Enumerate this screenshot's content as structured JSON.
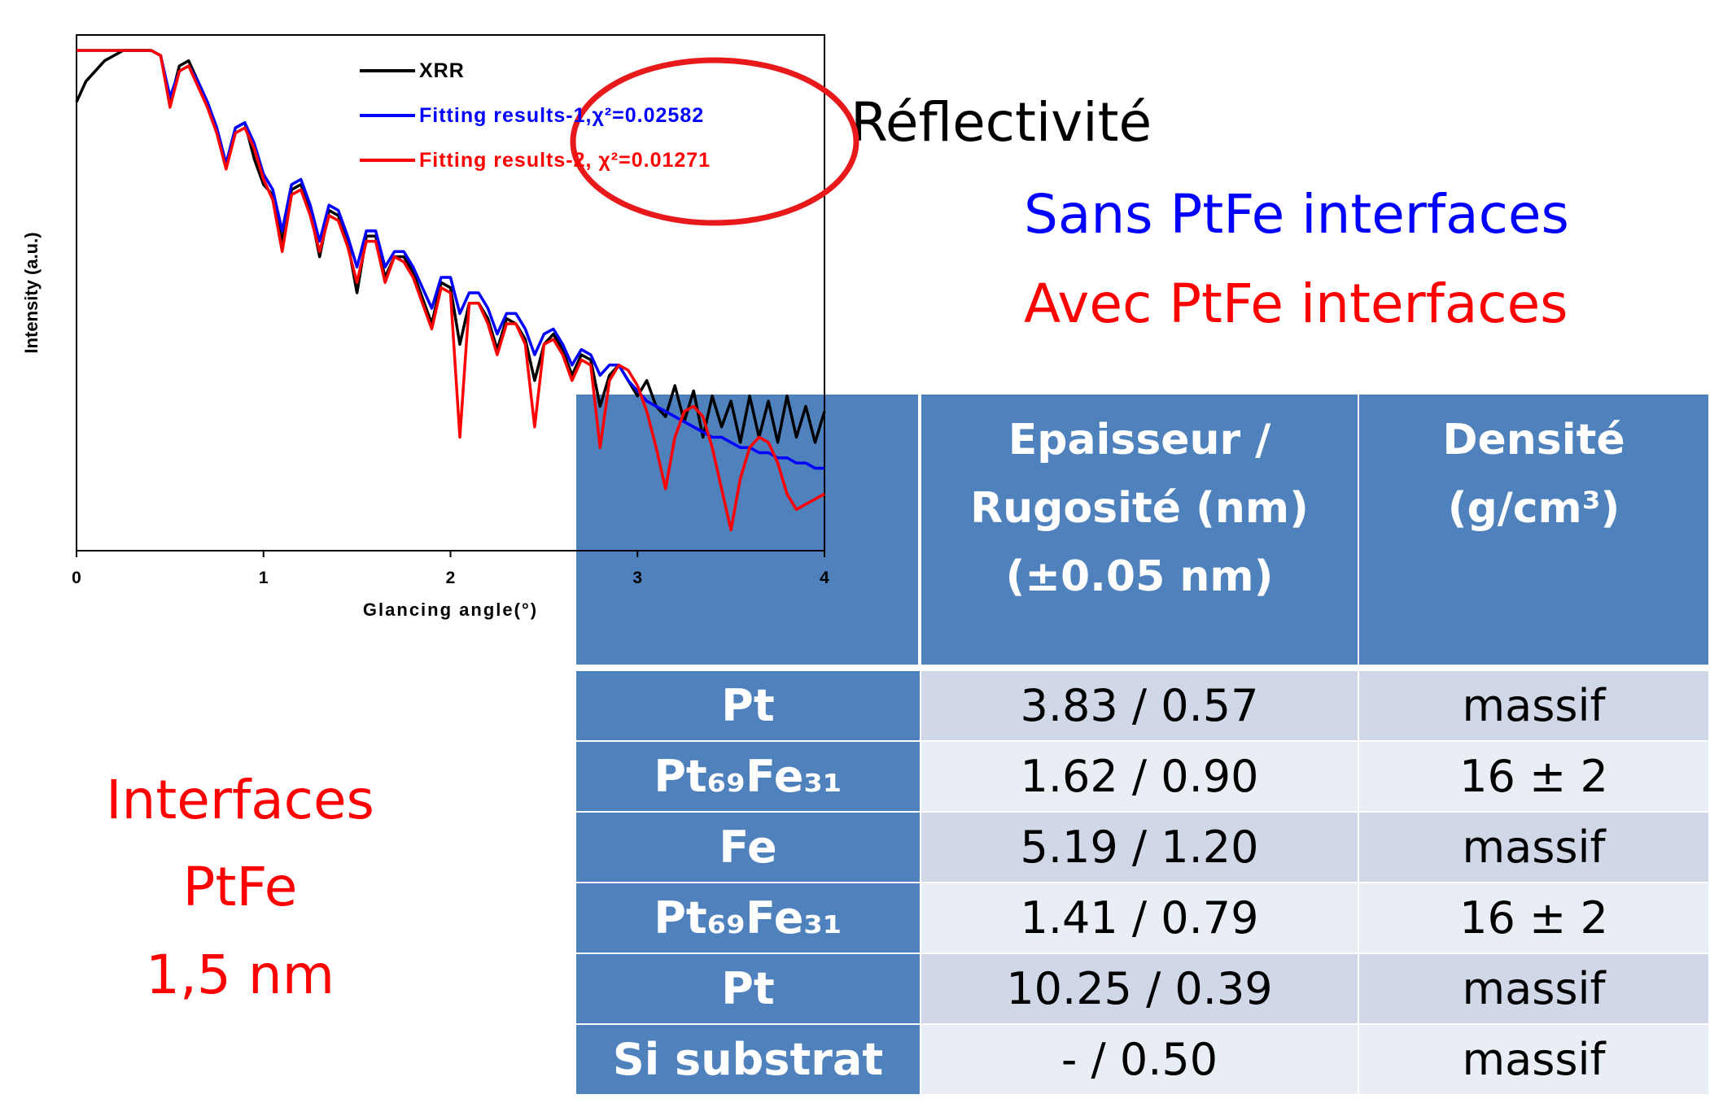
{
  "chart_data": {
    "type": "line",
    "ylabel": "Intensity (a.u.)",
    "xlabel": "Glancing angle(°)",
    "xlim": [
      0,
      4
    ],
    "xticks": [
      0,
      1,
      2,
      3,
      4
    ],
    "ylim": [
      0,
      100
    ],
    "x": [
      0,
      0.05,
      0.1,
      0.15,
      0.2,
      0.25,
      0.3,
      0.35,
      0.4,
      0.45,
      0.5,
      0.55,
      0.6,
      0.65,
      0.7,
      0.75,
      0.8,
      0.85,
      0.9,
      0.95,
      1,
      1.05,
      1.1,
      1.15,
      1.2,
      1.25,
      1.3,
      1.35,
      1.4,
      1.45,
      1.5,
      1.55,
      1.6,
      1.65,
      1.7,
      1.75,
      1.8,
      1.85,
      1.9,
      1.95,
      2,
      2.05,
      2.1,
      2.15,
      2.2,
      2.25,
      2.3,
      2.35,
      2.4,
      2.45,
      2.5,
      2.55,
      2.6,
      2.65,
      2.7,
      2.75,
      2.8,
      2.85,
      2.9,
      2.95,
      3,
      3.05,
      3.1,
      3.15,
      3.2,
      3.25,
      3.3,
      3.35,
      3.4,
      3.45,
      3.5,
      3.55,
      3.6,
      3.65,
      3.7,
      3.75,
      3.8,
      3.85,
      3.9,
      3.95,
      4
    ],
    "series": [
      {
        "name": "XRR",
        "color": "#000000",
        "values": [
          87,
          91,
          93,
          95,
          96,
          97,
          97,
          97,
          97,
          96,
          87,
          94,
          95,
          91,
          87,
          82,
          75,
          82,
          83,
          76,
          71,
          69,
          60,
          70,
          71,
          66,
          57,
          66,
          65,
          60,
          50,
          61,
          61,
          53,
          57,
          57,
          54,
          49,
          44,
          52,
          51,
          40,
          48,
          48,
          45,
          39,
          45,
          44,
          41,
          33,
          40,
          42,
          39,
          34,
          38,
          37,
          28,
          34,
          36,
          33,
          30,
          33,
          28,
          26,
          32,
          25,
          31,
          22,
          30,
          24,
          29,
          21,
          30,
          22,
          29,
          21,
          30,
          22,
          28,
          21,
          27
        ]
      },
      {
        "name": "Fitting results-1,χ²=0.02582",
        "color": "#0000ff",
        "values": [
          97,
          97,
          97,
          97,
          97,
          97,
          97,
          97,
          97,
          96,
          88,
          93,
          94,
          91,
          87,
          82,
          75,
          82,
          83,
          79,
          73,
          70,
          62,
          71,
          72,
          67,
          60,
          67,
          66,
          61,
          55,
          62,
          62,
          55,
          58,
          58,
          55,
          51,
          47,
          53,
          53,
          46,
          50,
          50,
          47,
          42,
          46,
          46,
          43,
          38,
          42,
          43,
          40,
          36,
          39,
          38,
          34,
          36,
          36,
          33,
          31,
          29,
          28,
          27,
          26,
          25,
          24,
          23,
          22,
          22,
          21,
          20,
          20,
          19,
          19,
          18,
          18,
          17,
          17,
          16,
          16
        ]
      },
      {
        "name": "Fitting results-2, χ²=0.01271",
        "color": "#ff0000",
        "values": [
          97,
          97,
          97,
          97,
          97,
          97,
          97,
          97,
          97,
          96,
          86,
          93,
          94,
          90,
          86,
          81,
          74,
          81,
          82,
          78,
          72,
          68,
          58,
          69,
          70,
          65,
          58,
          65,
          64,
          59,
          52,
          60,
          60,
          52,
          57,
          56,
          53,
          48,
          43,
          51,
          50,
          22,
          48,
          48,
          44,
          38,
          44,
          44,
          40,
          24,
          40,
          41,
          38,
          33,
          37,
          36,
          20,
          33,
          36,
          35,
          32,
          27,
          20,
          12,
          22,
          27,
          28,
          26,
          20,
          12,
          4,
          14,
          20,
          22,
          21,
          17,
          11,
          8,
          9,
          10,
          11
        ]
      }
    ]
  },
  "slide": {
    "heading": "Réflectivité",
    "blue_line": "Sans PtFe interfaces",
    "red_line": "Avec PtFe interfaces",
    "left_note": [
      "Interfaces",
      "PtFe",
      "1,5 nm"
    ]
  },
  "table": {
    "header": [
      [
        "Epaisseur /",
        "Rugosité (nm)",
        "(±0.05 nm)"
      ],
      [
        "Densité",
        "(g/cm³)"
      ]
    ],
    "rows": [
      [
        "Pt",
        "3.83 / 0.57",
        "massif"
      ],
      [
        "Pt₆₉Fe₃₁",
        "1.62 / 0.90",
        "16 ± 2"
      ],
      [
        "Fe",
        "5.19 / 1.20",
        "massif"
      ],
      [
        "Pt₆₉Fe₃₁",
        "1.41 / 0.79",
        "16 ± 2"
      ],
      [
        "Pt",
        "10.25 / 0.39",
        "massif"
      ],
      [
        "Si substrat",
        "- / 0.50",
        "massif"
      ]
    ]
  }
}
